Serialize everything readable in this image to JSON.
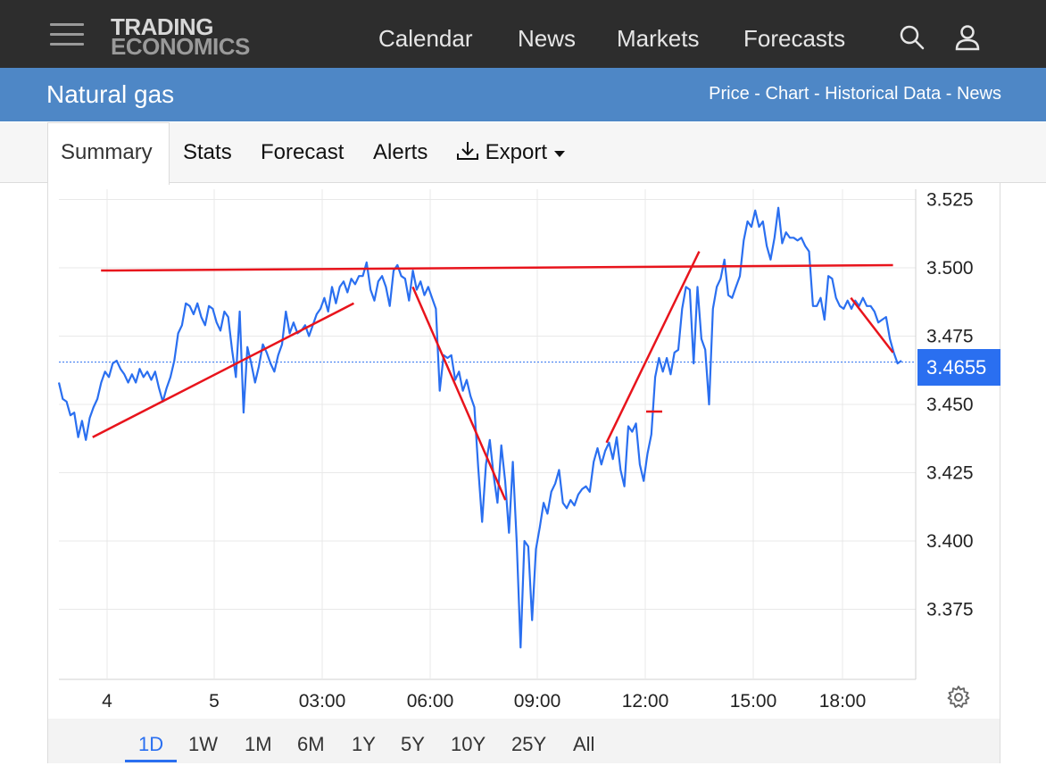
{
  "header": {
    "logo_line1": "TRADING",
    "logo_line2": "ECONOMICS",
    "nav": [
      "Calendar",
      "News",
      "Markets",
      "Forecasts"
    ],
    "search_icon": "search-icon",
    "user_icon": "user-icon"
  },
  "title_bar": {
    "title": "Natural gas",
    "breadcrumb": "Price - Chart - Historical Data - News"
  },
  "tabs": [
    "Summary",
    "Stats",
    "Forecast",
    "Alerts",
    "Export"
  ],
  "chart": {
    "current_price": "3.4655",
    "y_ticks": [
      "3.525",
      "3.500",
      "3.475",
      "3.450",
      "3.425",
      "3.400",
      "3.375"
    ],
    "x_ticks": [
      "4",
      "5",
      "03:00",
      "06:00",
      "09:00",
      "12:00",
      "15:00",
      "18:00"
    ],
    "ranges": [
      "1D",
      "1W",
      "1M",
      "6M",
      "1Y",
      "5Y",
      "10Y",
      "25Y",
      "All"
    ],
    "active_range": "1D",
    "colors": {
      "line": "#2a6ff0",
      "trend": "#e8141c",
      "grid": "#e9e9e9"
    }
  },
  "chart_data": {
    "type": "line",
    "ylim": [
      3.35,
      3.53
    ],
    "series": [
      {
        "values": [
          3.458,
          3.452,
          3.451,
          3.446,
          3.447,
          3.438,
          3.444,
          3.437,
          3.445,
          3.449,
          3.452,
          3.458,
          3.462,
          3.46,
          3.465,
          3.466,
          3.463,
          3.461,
          3.458,
          3.461,
          3.458,
          3.463,
          3.46,
          3.462,
          3.459,
          3.462,
          3.456,
          3.451,
          3.456,
          3.46,
          3.466,
          3.476,
          3.479,
          3.487,
          3.486,
          3.483,
          3.487,
          3.482,
          3.479,
          3.486,
          3.485,
          3.48,
          3.477,
          3.484,
          3.482,
          3.47,
          3.46,
          3.484,
          3.447,
          3.471,
          3.465,
          3.458,
          3.464,
          3.472,
          3.469,
          3.465,
          3.462,
          3.468,
          3.472,
          3.484,
          3.476,
          3.48,
          3.476,
          3.477,
          3.479,
          3.475,
          3.479,
          3.483,
          3.485,
          3.489,
          3.484,
          3.493,
          3.487,
          3.493,
          3.495,
          3.491,
          3.496,
          3.494,
          3.497,
          3.497,
          3.502,
          3.492,
          3.488,
          3.495,
          3.497,
          3.493,
          3.486,
          3.499,
          3.501,
          3.497,
          3.496,
          3.488,
          3.499,
          3.492,
          3.495,
          3.49,
          3.493,
          3.489,
          3.485,
          3.455,
          3.468,
          3.467,
          3.468,
          3.459,
          3.462,
          3.455,
          3.459,
          3.453,
          3.449,
          3.427,
          3.407,
          3.428,
          3.437,
          3.424,
          3.414,
          3.435,
          3.422,
          3.403,
          3.429,
          3.4,
          3.361,
          3.4,
          3.398,
          3.371,
          3.397,
          3.405,
          3.414,
          3.41,
          3.418,
          3.421,
          3.426,
          3.414,
          3.412,
          3.415,
          3.413,
          3.417,
          3.419,
          3.42,
          3.418,
          3.429,
          3.434,
          3.428,
          3.433,
          3.436,
          3.43,
          3.438,
          3.426,
          3.42,
          3.442,
          3.44,
          3.443,
          3.428,
          3.422,
          3.432,
          3.439,
          3.46,
          3.467,
          3.462,
          3.467,
          3.461,
          3.469,
          3.47,
          3.485,
          3.493,
          3.492,
          3.465,
          3.493,
          3.474,
          3.47,
          3.45,
          3.485,
          3.493,
          3.496,
          3.503,
          3.49,
          3.489,
          3.493,
          3.497,
          3.51,
          3.517,
          3.515,
          3.521,
          3.515,
          3.517,
          3.508,
          3.503,
          3.511,
          3.522,
          3.509,
          3.513,
          3.511,
          3.511,
          3.51,
          3.511,
          3.508,
          3.506,
          3.486,
          3.486,
          3.489,
          3.481,
          3.497,
          3.496,
          3.489,
          3.486,
          3.485,
          3.488,
          3.485,
          3.488,
          3.486,
          3.489,
          3.486,
          3.486,
          3.484,
          3.48,
          3.481,
          3.482,
          3.474,
          3.469,
          3.465,
          3.466
        ]
      }
    ],
    "trendlines": [
      [
        [
          0.04,
          3.438
        ],
        [
          0.35,
          3.487
        ]
      ],
      [
        [
          0.05,
          3.499
        ],
        [
          0.99,
          3.501
        ]
      ],
      [
        [
          0.42,
          3.493
        ],
        [
          0.53,
          3.415
        ]
      ],
      [
        [
          0.65,
          3.436
        ],
        [
          0.76,
          3.506
        ]
      ],
      [
        [
          0.94,
          3.489
        ],
        [
          0.99,
          3.469
        ]
      ]
    ]
  }
}
